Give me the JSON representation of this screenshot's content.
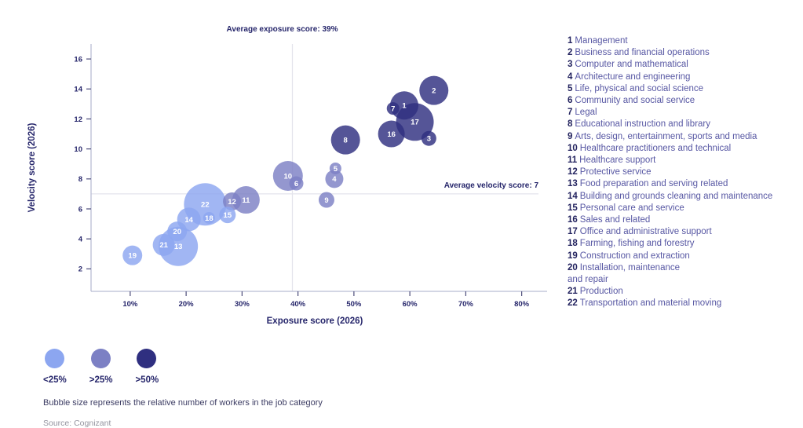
{
  "chart_data": {
    "type": "scatter",
    "subtype": "bubble",
    "xlabel": "Exposure score (2026)",
    "ylabel": "Velocity score (2026)",
    "xlim": [
      3,
      83
    ],
    "ylim": [
      0.5,
      17
    ],
    "x_ticks": [
      10,
      20,
      30,
      40,
      50,
      60,
      70,
      80
    ],
    "x_tick_suffix": "%",
    "y_ticks": [
      2,
      4,
      6,
      8,
      10,
      12,
      14,
      16
    ],
    "grid": "off",
    "legend_position": "right",
    "average_lines": {
      "exposure": {
        "value": 39,
        "label": "Average exposure score: 39%"
      },
      "velocity": {
        "value": 7,
        "label": "Average velocity score: 7"
      }
    },
    "size_classes": {
      "light": {
        "color": "#8CA6F0",
        "label": "<25%"
      },
      "medium": {
        "color": "#7C80C4",
        "label": ">25%"
      },
      "dark": {
        "color": "#2F2F80",
        "label": ">50%"
      }
    },
    "bubble_opacity": 0.82,
    "points": [
      {
        "id": 1,
        "label": "Management",
        "x": 59.0,
        "y": 12.9,
        "r": 18.0,
        "size": "dark"
      },
      {
        "id": 2,
        "label": "Business and financial operations",
        "x": 64.3,
        "y": 13.9,
        "r": 18.5,
        "size": "dark"
      },
      {
        "id": 3,
        "label": "Computer and mathematical",
        "x": 63.4,
        "y": 10.7,
        "r": 9.5,
        "size": "dark"
      },
      {
        "id": 4,
        "label": "Architecture and engineering",
        "x": 46.5,
        "y": 8.0,
        "r": 11.5,
        "size": "medium"
      },
      {
        "id": 5,
        "label": "Life, physical and social science",
        "x": 46.7,
        "y": 8.7,
        "r": 7.5,
        "size": "medium"
      },
      {
        "id": 6,
        "label": "Community and social service",
        "x": 39.7,
        "y": 7.7,
        "r": 9.0,
        "size": "medium"
      },
      {
        "id": 7,
        "label": "Legal",
        "x": 57.0,
        "y": 12.7,
        "r": 8.0,
        "size": "dark"
      },
      {
        "id": 8,
        "label": "Educational instruction and library",
        "x": 48.5,
        "y": 10.6,
        "r": 18.5,
        "size": "dark"
      },
      {
        "id": 9,
        "label": "Arts, design, entertainment, sports and media",
        "x": 45.1,
        "y": 6.6,
        "r": 10.0,
        "size": "medium"
      },
      {
        "id": 10,
        "label": "Healthcare practitioners and technical",
        "x": 38.2,
        "y": 8.2,
        "r": 19.0,
        "size": "medium"
      },
      {
        "id": 11,
        "label": "Healthcare support",
        "x": 30.7,
        "y": 6.6,
        "r": 17.5,
        "size": "medium"
      },
      {
        "id": 12,
        "label": "Protective service",
        "x": 28.2,
        "y": 6.5,
        "r": 11.5,
        "size": "medium"
      },
      {
        "id": 13,
        "label": "Food preparation and serving related",
        "x": 18.6,
        "y": 3.5,
        "r": 25.0,
        "size": "light"
      },
      {
        "id": 14,
        "label": "Building and grounds cleaning and maintenance",
        "x": 20.5,
        "y": 5.3,
        "r": 15.0,
        "size": "light"
      },
      {
        "id": 15,
        "label": "Personal care and service",
        "x": 27.4,
        "y": 5.6,
        "r": 10.5,
        "size": "light"
      },
      {
        "id": 16,
        "label": "Sales and related",
        "x": 56.7,
        "y": 11.0,
        "r": 17.0,
        "size": "dark"
      },
      {
        "id": 17,
        "label": "Office and administrative support",
        "x": 60.9,
        "y": 11.8,
        "r": 24.0,
        "size": "dark"
      },
      {
        "id": 18,
        "label": "Farming, fishing and forestry",
        "x": 24.1,
        "y": 5.4,
        "r": 7.5,
        "size": "light"
      },
      {
        "id": 19,
        "label": "Construction and extraction",
        "x": 10.4,
        "y": 2.9,
        "r": 12.5,
        "size": "light"
      },
      {
        "id": 20,
        "label": "Installation, maintenance and repair",
        "x": 18.4,
        "y": 4.5,
        "r": 12.5,
        "size": "light"
      },
      {
        "id": 21,
        "label": "Production",
        "x": 16.0,
        "y": 3.6,
        "r": 14.0,
        "size": "light"
      },
      {
        "id": 22,
        "label": "Transportation and material moving",
        "x": 23.4,
        "y": 6.3,
        "r": 27.0,
        "size": "light"
      }
    ]
  },
  "category_legend": {
    "items": [
      {
        "num": "1",
        "label": "Management"
      },
      {
        "num": "2",
        "label": "Business and financial operations"
      },
      {
        "num": "3",
        "label": "Computer and mathematical"
      },
      {
        "num": "4",
        "label": "Architecture and engineering"
      },
      {
        "num": "5",
        "label": "Life, physical and social science"
      },
      {
        "num": "6",
        "label": "Community and social service"
      },
      {
        "num": "7",
        "label": "Legal"
      },
      {
        "num": "8",
        "label": "Educational instruction and library"
      },
      {
        "num": "9",
        "label": "Arts, design, entertainment, sports and media"
      },
      {
        "num": "10",
        "label": "Healthcare practitioners and technical"
      },
      {
        "num": "11",
        "label": "Healthcare support"
      },
      {
        "num": "12",
        "label": "Protective service"
      },
      {
        "num": "13",
        "label": "Food preparation and serving related"
      },
      {
        "num": "14",
        "label": "Building and grounds cleaning and maintenance"
      },
      {
        "num": "15",
        "label": "Personal care and service"
      },
      {
        "num": "16",
        "label": "Sales and related"
      },
      {
        "num": "17",
        "label": "Office and administrative support"
      },
      {
        "num": "18",
        "label": "Farming, fishing and forestry"
      },
      {
        "num": "19",
        "label": "Construction and extraction"
      },
      {
        "num": "20",
        "label": "Installation, maintenance\nand repair"
      },
      {
        "num": "21",
        "label": "Production"
      },
      {
        "num": "22",
        "label": "Transportation and material moving"
      }
    ]
  },
  "size_legend": {
    "items": [
      {
        "label": "<25%",
        "color": "#8CA6F0"
      },
      {
        "label": ">25%",
        "color": "#7C80C4"
      },
      {
        "label": ">50%",
        "color": "#2F2F80"
      }
    ],
    "note": "Bubble size represents the relative number of workers in the job category",
    "source": "Source: Cognizant"
  },
  "colors": {
    "tick_text": "#26266b",
    "axis_line": "#b9bdd4",
    "tick_mark": "#4c4c7a",
    "average_line": "#e4e4ec",
    "annotation_text": "#26266b",
    "bubble_label": "#ffffff"
  }
}
